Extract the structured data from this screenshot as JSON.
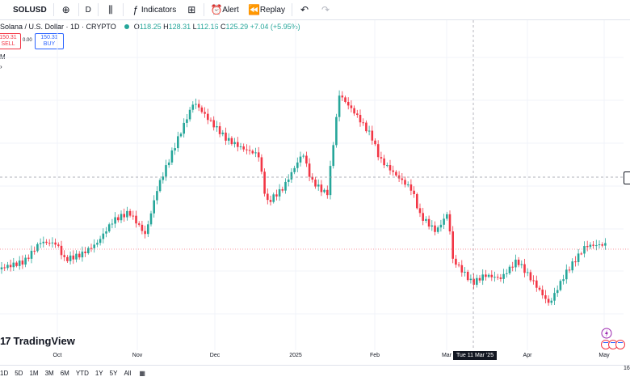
{
  "toolbar": {
    "symbol": "SOLUSD",
    "interval": "D",
    "indicators_label": "Indicators",
    "alert_label": "Alert",
    "replay_label": "Replay"
  },
  "legend": {
    "title": "Solana / U.S. Dollar · 1D · CRYPTO",
    "o_label": "O",
    "o_value": "118.25",
    "h_label": "H",
    "h_value": "128.31",
    "l_label": "L",
    "l_value": "112.16",
    "c_label": "C",
    "c_value": "125.29",
    "change": "+7.04 (+5.95%)"
  },
  "trade": {
    "sell_price": "150.31",
    "sell_label": "SELL",
    "spread": "0.00",
    "buy_price": "150.31",
    "buy_label": "BUY"
  },
  "side": {
    "m_label": "M",
    "chevron": "›"
  },
  "brand": {
    "logo_text": "TradingView"
  },
  "x_axis": {
    "labels": [
      {
        "text": "Oct",
        "pos": 0
      },
      {
        "text": "Nov",
        "pos": 1
      },
      {
        "text": "Dec",
        "pos": 2
      },
      {
        "text": "2025",
        "pos": 3
      },
      {
        "text": "Feb",
        "pos": 4
      },
      {
        "text": "Mar",
        "pos": 5
      },
      {
        "text": "Apr",
        "pos": 6
      },
      {
        "text": "May",
        "pos": 7
      }
    ],
    "crosshair_date": "Tue 11 Mar '25",
    "cut_label": "16"
  },
  "ranges": [
    "1D",
    "5D",
    "1M",
    "3M",
    "6M",
    "YTD",
    "1Y",
    "5Y",
    "All"
  ],
  "colors": {
    "up": "#26a69a",
    "down": "#f23645",
    "grid": "#f0f3fa",
    "crosshair": "#9598a1"
  }
}
